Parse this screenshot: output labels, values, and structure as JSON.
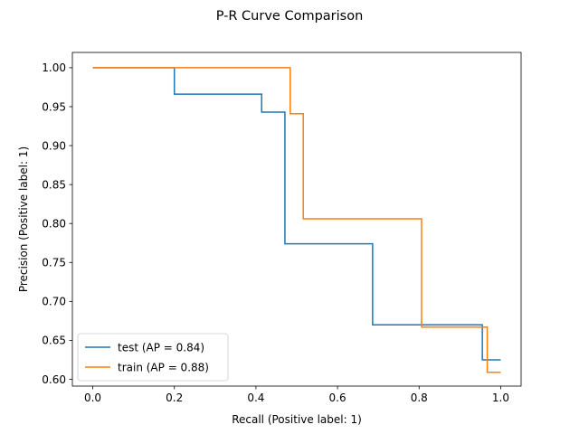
{
  "chart_data": {
    "type": "line",
    "title": "P-R Curve Comparison",
    "xlabel": "Recall (Positive label: 1)",
    "ylabel": "Precision (Positive label: 1)",
    "xlim": [
      -0.05,
      1.05
    ],
    "ylim": [
      0.5913,
      1.0196
    ],
    "xticks": [
      0.0,
      0.2,
      0.4,
      0.6,
      0.8,
      1.0
    ],
    "xtick_labels": [
      "0.0",
      "0.2",
      "0.4",
      "0.6",
      "0.8",
      "1.0"
    ],
    "yticks": [
      0.6,
      0.65,
      0.7,
      0.75,
      0.8,
      0.85,
      0.9,
      0.95,
      1.0
    ],
    "ytick_labels": [
      "0.60",
      "0.65",
      "0.70",
      "0.75",
      "0.80",
      "0.85",
      "0.90",
      "0.95",
      "1.00"
    ],
    "grid": false,
    "legend_position": "lower-left",
    "step": "post",
    "series": [
      {
        "name": "test (AP = 0.84)",
        "color": "#1f77b4",
        "recall": [
          1.0,
          0.955,
          0.955,
          0.686,
          0.686,
          0.471,
          0.471,
          0.414,
          0.414,
          0.2,
          0.2,
          0.0
        ],
        "precision": [
          0.625,
          0.625,
          0.67,
          0.67,
          0.774,
          0.774,
          0.943,
          0.943,
          0.966,
          0.966,
          1.0,
          1.0
        ]
      },
      {
        "name": "train (AP = 0.88)",
        "color": "#ff7f0e",
        "recall": [
          1.0,
          0.967,
          0.967,
          0.806,
          0.806,
          0.516,
          0.516,
          0.484,
          0.484,
          0.0
        ],
        "precision": [
          0.609,
          0.609,
          0.667,
          0.667,
          0.806,
          0.806,
          0.941,
          0.941,
          1.0,
          1.0
        ]
      }
    ]
  }
}
